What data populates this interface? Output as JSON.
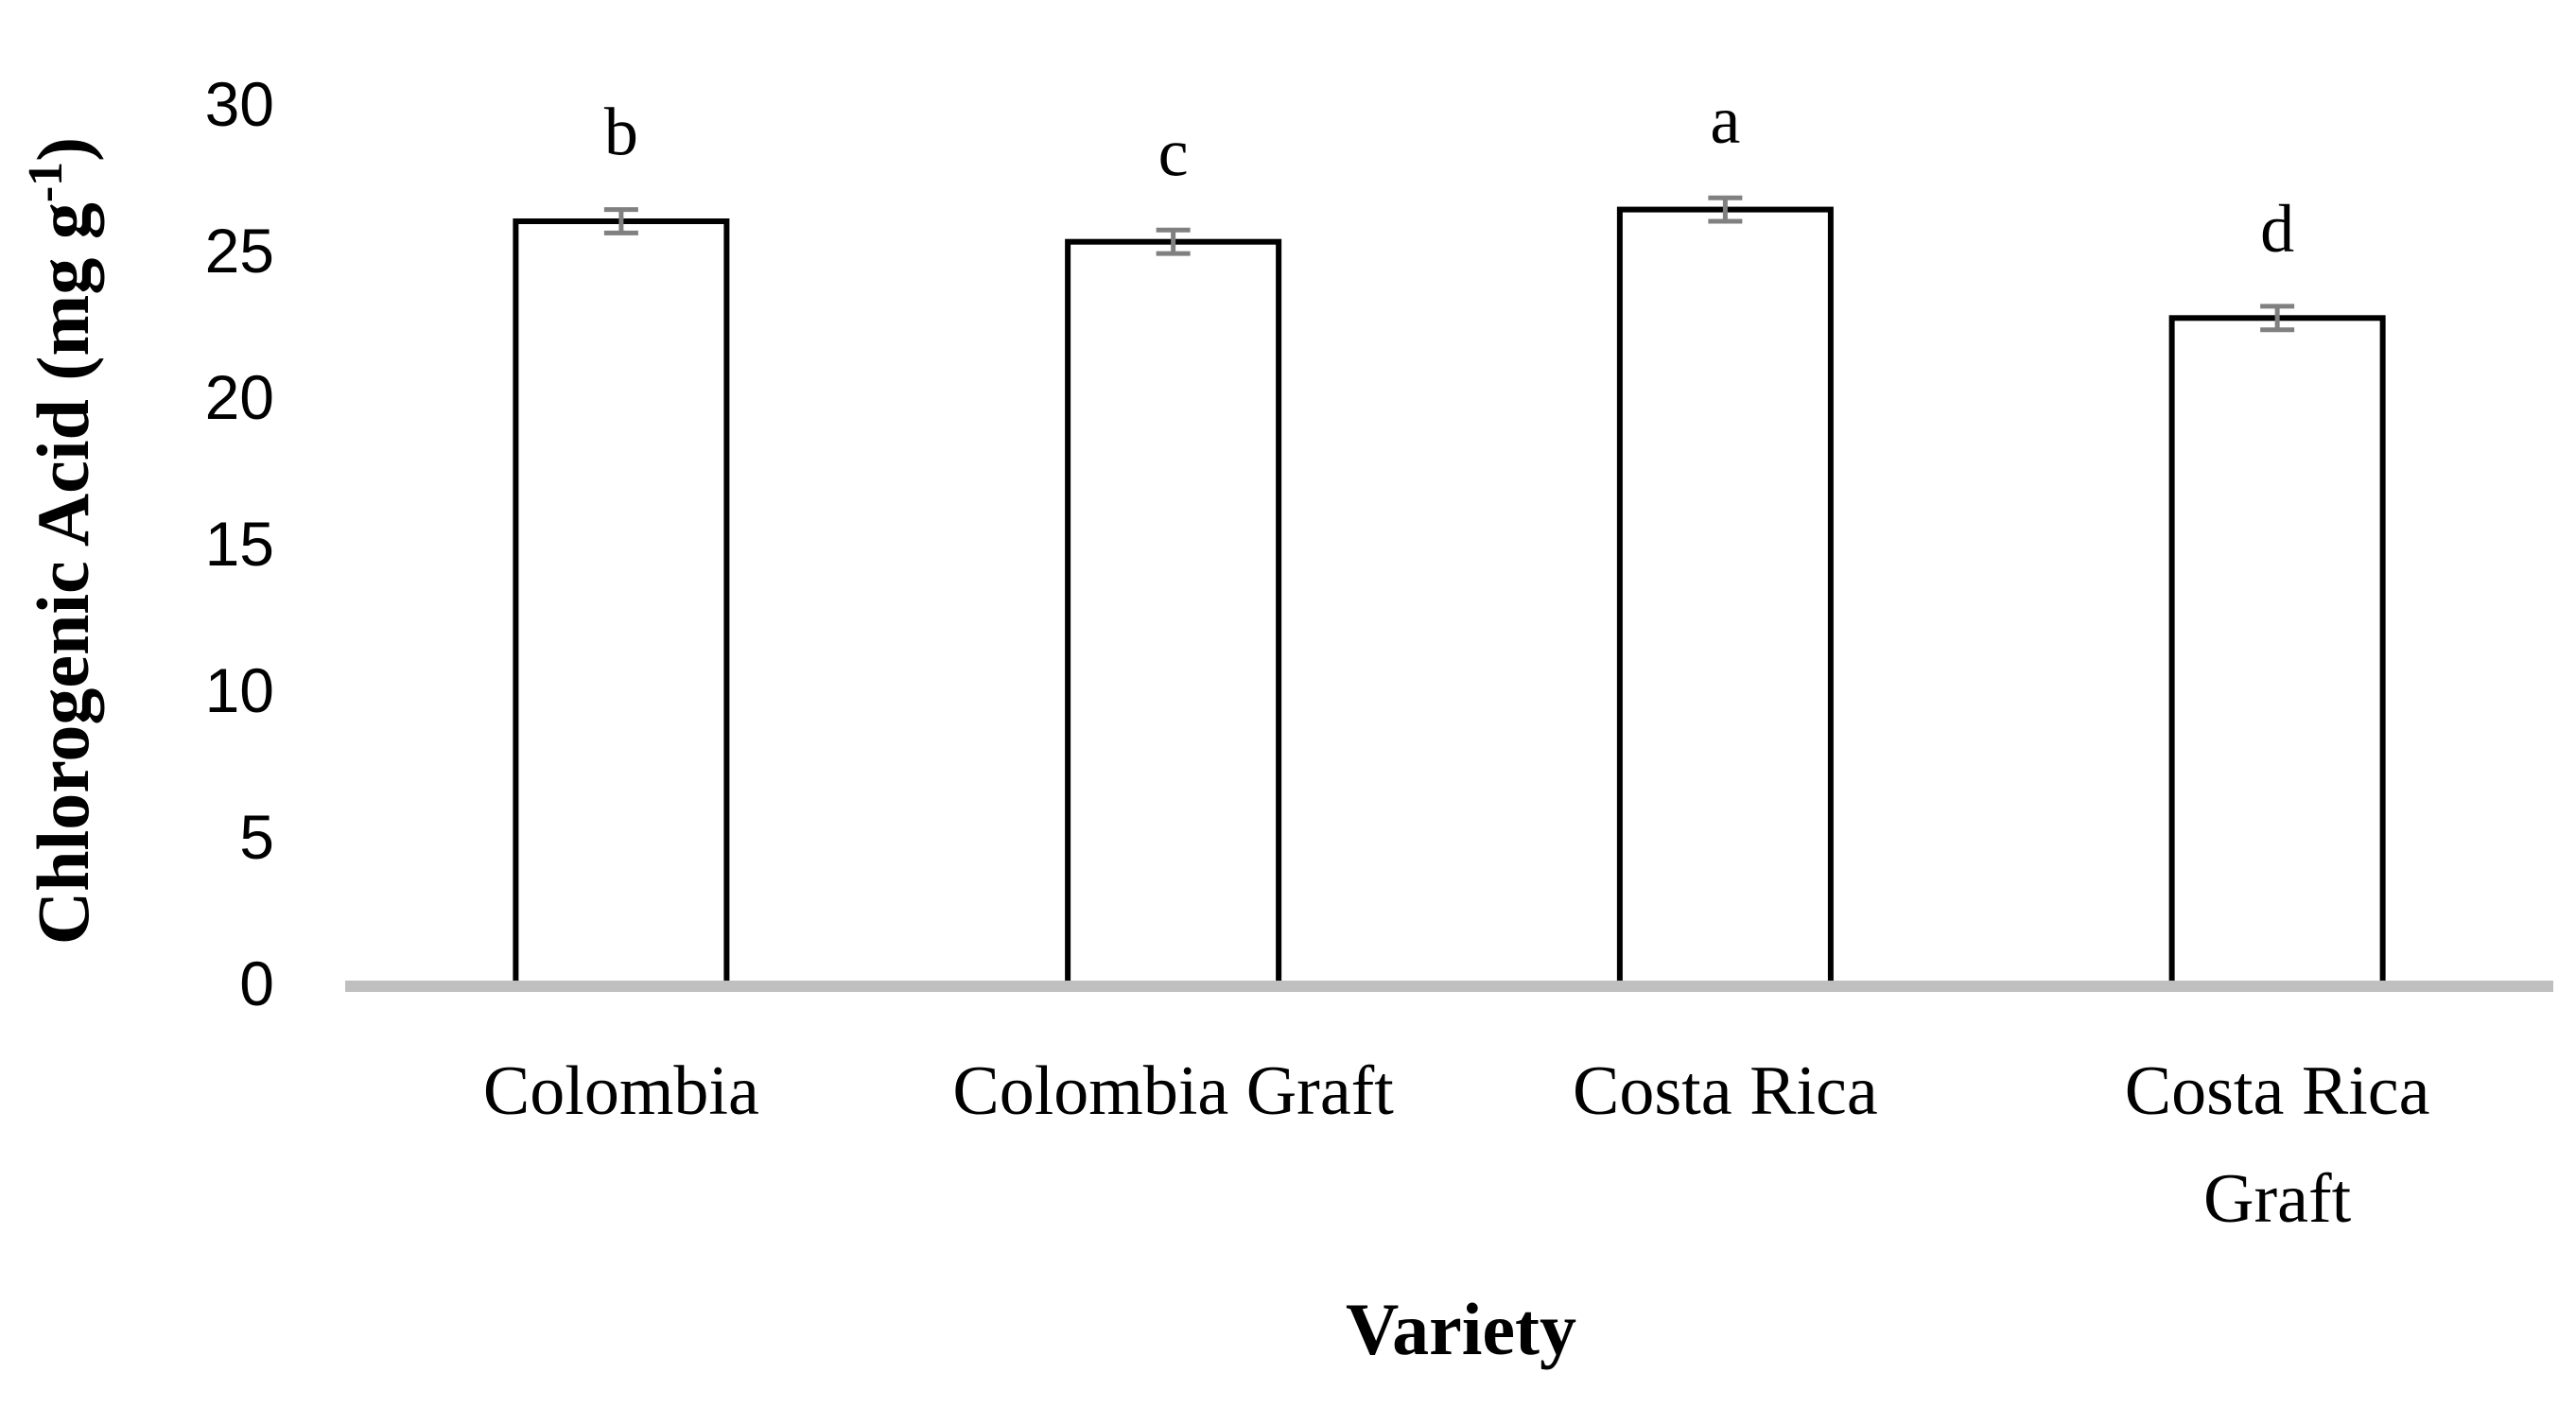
{
  "chart_data": {
    "type": "bar",
    "xlabel": "Variety",
    "ylabel": "Chlorogenic Acid (mg g",
    "ylabel_superscript": "-1",
    "ylabel_suffix": ")",
    "ylim": [
      0,
      30
    ],
    "yticks": [
      "0",
      "5",
      "10",
      "15",
      "20",
      "25",
      "30"
    ],
    "grid": false,
    "legend": "none",
    "categories": [
      [
        "Colombia"
      ],
      [
        "Colombia Graft"
      ],
      [
        "Costa Rica"
      ],
      [
        "Costa Rica",
        "Graft"
      ]
    ],
    "series": [
      {
        "values": [
          26.0,
          25.3,
          26.4,
          22.7
        ],
        "errors": [
          0.4,
          0.4,
          0.4,
          0.4
        ],
        "significance": [
          "b",
          "c",
          "a",
          "d"
        ]
      }
    ],
    "colors": {
      "bar_fill": "#ffffff",
      "bar_stroke": "#000000",
      "error_bar": "#808080",
      "axis_line": "#bfbfbf"
    }
  }
}
